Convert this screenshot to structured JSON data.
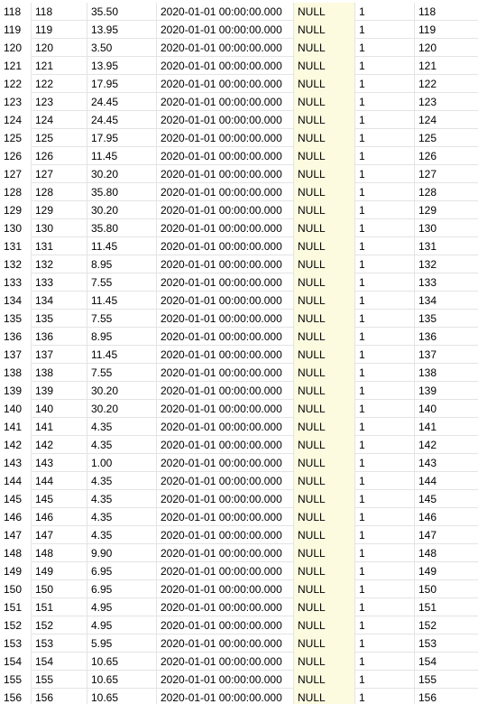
{
  "colors": {
    "null_column_bg": "#fcfadf",
    "gridline": "#e4e4e4"
  },
  "rows": [
    {
      "row_num": "118",
      "id": "118",
      "price": "35.50",
      "date": "2020-01-01 00:00:00.000",
      "nullval": "NULL",
      "flag": "1",
      "ref": "118"
    },
    {
      "row_num": "119",
      "id": "119",
      "price": "13.95",
      "date": "2020-01-01 00:00:00.000",
      "nullval": "NULL",
      "flag": "1",
      "ref": "119"
    },
    {
      "row_num": "120",
      "id": "120",
      "price": "3.50",
      "date": "2020-01-01 00:00:00.000",
      "nullval": "NULL",
      "flag": "1",
      "ref": "120"
    },
    {
      "row_num": "121",
      "id": "121",
      "price": "13.95",
      "date": "2020-01-01 00:00:00.000",
      "nullval": "NULL",
      "flag": "1",
      "ref": "121"
    },
    {
      "row_num": "122",
      "id": "122",
      "price": "17.95",
      "date": "2020-01-01 00:00:00.000",
      "nullval": "NULL",
      "flag": "1",
      "ref": "122"
    },
    {
      "row_num": "123",
      "id": "123",
      "price": "24.45",
      "date": "2020-01-01 00:00:00.000",
      "nullval": "NULL",
      "flag": "1",
      "ref": "123"
    },
    {
      "row_num": "124",
      "id": "124",
      "price": "24.45",
      "date": "2020-01-01 00:00:00.000",
      "nullval": "NULL",
      "flag": "1",
      "ref": "124"
    },
    {
      "row_num": "125",
      "id": "125",
      "price": "17.95",
      "date": "2020-01-01 00:00:00.000",
      "nullval": "NULL",
      "flag": "1",
      "ref": "125"
    },
    {
      "row_num": "126",
      "id": "126",
      "price": "11.45",
      "date": "2020-01-01 00:00:00.000",
      "nullval": "NULL",
      "flag": "1",
      "ref": "126"
    },
    {
      "row_num": "127",
      "id": "127",
      "price": "30.20",
      "date": "2020-01-01 00:00:00.000",
      "nullval": "NULL",
      "flag": "1",
      "ref": "127"
    },
    {
      "row_num": "128",
      "id": "128",
      "price": "35.80",
      "date": "2020-01-01 00:00:00.000",
      "nullval": "NULL",
      "flag": "1",
      "ref": "128"
    },
    {
      "row_num": "129",
      "id": "129",
      "price": "30.20",
      "date": "2020-01-01 00:00:00.000",
      "nullval": "NULL",
      "flag": "1",
      "ref": "129"
    },
    {
      "row_num": "130",
      "id": "130",
      "price": "35.80",
      "date": "2020-01-01 00:00:00.000",
      "nullval": "NULL",
      "flag": "1",
      "ref": "130"
    },
    {
      "row_num": "131",
      "id": "131",
      "price": "11.45",
      "date": "2020-01-01 00:00:00.000",
      "nullval": "NULL",
      "flag": "1",
      "ref": "131"
    },
    {
      "row_num": "132",
      "id": "132",
      "price": "8.95",
      "date": "2020-01-01 00:00:00.000",
      "nullval": "NULL",
      "flag": "1",
      "ref": "132"
    },
    {
      "row_num": "133",
      "id": "133",
      "price": "7.55",
      "date": "2020-01-01 00:00:00.000",
      "nullval": "NULL",
      "flag": "1",
      "ref": "133"
    },
    {
      "row_num": "134",
      "id": "134",
      "price": "11.45",
      "date": "2020-01-01 00:00:00.000",
      "nullval": "NULL",
      "flag": "1",
      "ref": "134"
    },
    {
      "row_num": "135",
      "id": "135",
      "price": "7.55",
      "date": "2020-01-01 00:00:00.000",
      "nullval": "NULL",
      "flag": "1",
      "ref": "135"
    },
    {
      "row_num": "136",
      "id": "136",
      "price": "8.95",
      "date": "2020-01-01 00:00:00.000",
      "nullval": "NULL",
      "flag": "1",
      "ref": "136"
    },
    {
      "row_num": "137",
      "id": "137",
      "price": "11.45",
      "date": "2020-01-01 00:00:00.000",
      "nullval": "NULL",
      "flag": "1",
      "ref": "137"
    },
    {
      "row_num": "138",
      "id": "138",
      "price": "7.55",
      "date": "2020-01-01 00:00:00.000",
      "nullval": "NULL",
      "flag": "1",
      "ref": "138"
    },
    {
      "row_num": "139",
      "id": "139",
      "price": "30.20",
      "date": "2020-01-01 00:00:00.000",
      "nullval": "NULL",
      "flag": "1",
      "ref": "139"
    },
    {
      "row_num": "140",
      "id": "140",
      "price": "30.20",
      "date": "2020-01-01 00:00:00.000",
      "nullval": "NULL",
      "flag": "1",
      "ref": "140"
    },
    {
      "row_num": "141",
      "id": "141",
      "price": "4.35",
      "date": "2020-01-01 00:00:00.000",
      "nullval": "NULL",
      "flag": "1",
      "ref": "141"
    },
    {
      "row_num": "142",
      "id": "142",
      "price": "4.35",
      "date": "2020-01-01 00:00:00.000",
      "nullval": "NULL",
      "flag": "1",
      "ref": "142"
    },
    {
      "row_num": "143",
      "id": "143",
      "price": "1.00",
      "date": "2020-01-01 00:00:00.000",
      "nullval": "NULL",
      "flag": "1",
      "ref": "143"
    },
    {
      "row_num": "144",
      "id": "144",
      "price": "4.35",
      "date": "2020-01-01 00:00:00.000",
      "nullval": "NULL",
      "flag": "1",
      "ref": "144"
    },
    {
      "row_num": "145",
      "id": "145",
      "price": "4.35",
      "date": "2020-01-01 00:00:00.000",
      "nullval": "NULL",
      "flag": "1",
      "ref": "145"
    },
    {
      "row_num": "146",
      "id": "146",
      "price": "4.35",
      "date": "2020-01-01 00:00:00.000",
      "nullval": "NULL",
      "flag": "1",
      "ref": "146"
    },
    {
      "row_num": "147",
      "id": "147",
      "price": "4.35",
      "date": "2020-01-01 00:00:00.000",
      "nullval": "NULL",
      "flag": "1",
      "ref": "147"
    },
    {
      "row_num": "148",
      "id": "148",
      "price": "9.90",
      "date": "2020-01-01 00:00:00.000",
      "nullval": "NULL",
      "flag": "1",
      "ref": "148"
    },
    {
      "row_num": "149",
      "id": "149",
      "price": "6.95",
      "date": "2020-01-01 00:00:00.000",
      "nullval": "NULL",
      "flag": "1",
      "ref": "149"
    },
    {
      "row_num": "150",
      "id": "150",
      "price": "6.95",
      "date": "2020-01-01 00:00:00.000",
      "nullval": "NULL",
      "flag": "1",
      "ref": "150"
    },
    {
      "row_num": "151",
      "id": "151",
      "price": "4.95",
      "date": "2020-01-01 00:00:00.000",
      "nullval": "NULL",
      "flag": "1",
      "ref": "151"
    },
    {
      "row_num": "152",
      "id": "152",
      "price": "4.95",
      "date": "2020-01-01 00:00:00.000",
      "nullval": "NULL",
      "flag": "1",
      "ref": "152"
    },
    {
      "row_num": "153",
      "id": "153",
      "price": "5.95",
      "date": "2020-01-01 00:00:00.000",
      "nullval": "NULL",
      "flag": "1",
      "ref": "153"
    },
    {
      "row_num": "154",
      "id": "154",
      "price": "10.65",
      "date": "2020-01-01 00:00:00.000",
      "nullval": "NULL",
      "flag": "1",
      "ref": "154"
    },
    {
      "row_num": "155",
      "id": "155",
      "price": "10.65",
      "date": "2020-01-01 00:00:00.000",
      "nullval": "NULL",
      "flag": "1",
      "ref": "155"
    },
    {
      "row_num": "156",
      "id": "156",
      "price": "10.65",
      "date": "2020-01-01 00:00:00.000",
      "nullval": "NULL",
      "flag": "1",
      "ref": "156"
    }
  ]
}
